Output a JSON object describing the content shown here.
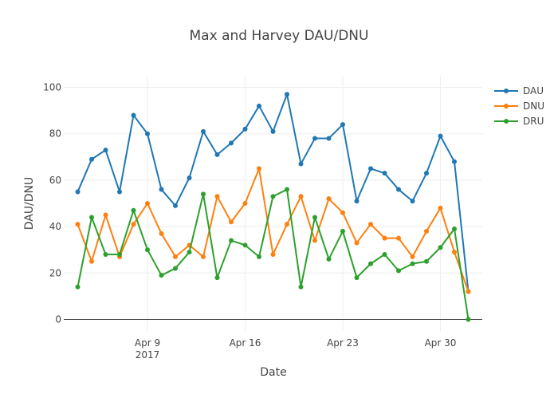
{
  "chart_data": {
    "type": "line",
    "title": "Max and Harvey DAU/DNU",
    "xlabel": "Date",
    "ylabel": "DAU/DNU",
    "x_axis_kind": "date",
    "xlim": [
      "2017-04-03",
      "2017-05-03"
    ],
    "ylim": [
      -5,
      105
    ],
    "x_ticks": [
      {
        "date": "2017-04-09",
        "label": "Apr 9",
        "sublabel": "2017"
      },
      {
        "date": "2017-04-16",
        "label": "Apr 16",
        "sublabel": ""
      },
      {
        "date": "2017-04-23",
        "label": "Apr 23",
        "sublabel": ""
      },
      {
        "date": "2017-04-30",
        "label": "Apr 30",
        "sublabel": ""
      }
    ],
    "y_ticks": [
      0,
      20,
      40,
      60,
      80,
      100
    ],
    "grid": true,
    "legend_position": "top-right",
    "x": [
      "2017-04-04",
      "2017-04-05",
      "2017-04-06",
      "2017-04-07",
      "2017-04-08",
      "2017-04-09",
      "2017-04-10",
      "2017-04-11",
      "2017-04-12",
      "2017-04-13",
      "2017-04-14",
      "2017-04-15",
      "2017-04-16",
      "2017-04-17",
      "2017-04-18",
      "2017-04-19",
      "2017-04-20",
      "2017-04-21",
      "2017-04-22",
      "2017-04-23",
      "2017-04-24",
      "2017-04-25",
      "2017-04-26",
      "2017-04-27",
      "2017-04-28",
      "2017-04-29",
      "2017-04-30",
      "2017-05-01",
      "2017-05-02"
    ],
    "series": [
      {
        "name": "DAU",
        "color": "#1f77b4",
        "values": [
          55,
          69,
          73,
          55,
          88,
          80,
          56,
          49,
          61,
          81,
          71,
          76,
          82,
          92,
          81,
          97,
          67,
          78,
          78,
          84,
          51,
          65,
          63,
          56,
          51,
          63,
          79,
          68,
          12
        ]
      },
      {
        "name": "DNU",
        "color": "#ff7f0e",
        "values": [
          41,
          25,
          45,
          27,
          41,
          50,
          37,
          27,
          32,
          27,
          53,
          42,
          50,
          65,
          28,
          41,
          53,
          34,
          52,
          46,
          33,
          41,
          35,
          35,
          27,
          38,
          48,
          29,
          12
        ]
      },
      {
        "name": "DRU",
        "color": "#2ca02c",
        "values": [
          14,
          44,
          28,
          28,
          47,
          30,
          19,
          22,
          29,
          54,
          18,
          34,
          32,
          27,
          53,
          56,
          14,
          44,
          26,
          38,
          18,
          24,
          28,
          21,
          24,
          25,
          31,
          39,
          0
        ]
      }
    ]
  }
}
